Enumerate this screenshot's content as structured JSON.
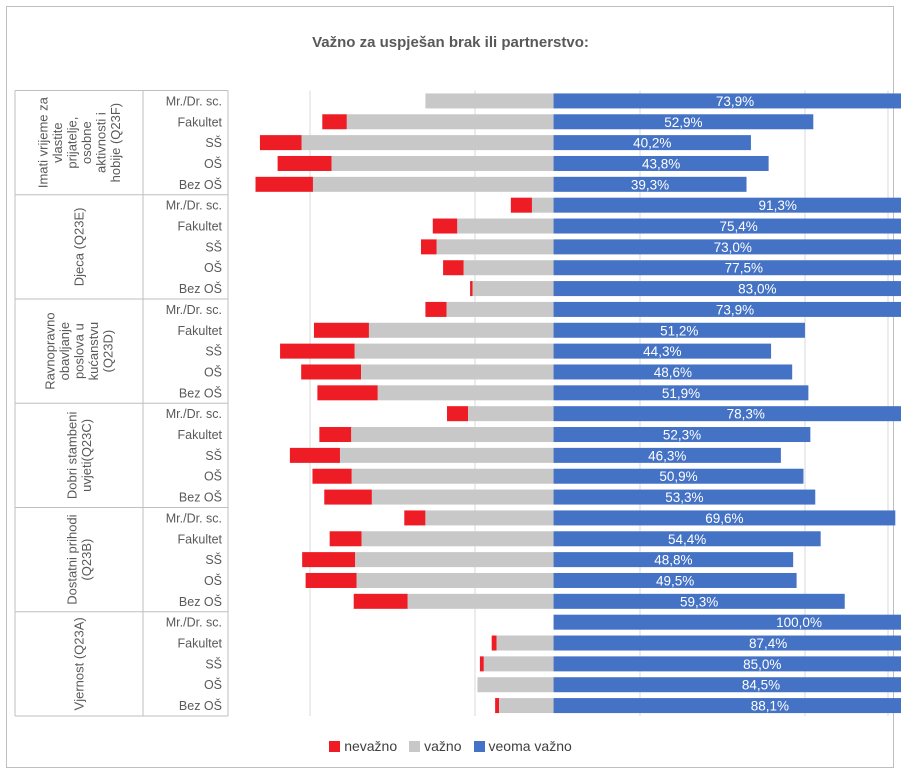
{
  "chart_data": {
    "type": "bar",
    "subtype": "stacked-horizontal",
    "title": "Važno za uspješan brak ili partnerstvo:",
    "series": [
      {
        "name": "nevažno",
        "color": "#ee1c25"
      },
      {
        "name": "važno",
        "color": "#c8c8c8"
      },
      {
        "name": "veoma važno",
        "color": "#4472c4"
      }
    ],
    "groups": [
      {
        "label": "Imati vrijeme za vlastite prijatelje, osobne aktivnosti i hobije (Q23F)",
        "label_lines": [
          "Imati vrijeme za",
          "vlastite",
          "prijatelje,",
          "osobne",
          "aktivnosti i",
          "hobije (Q23F)"
        ],
        "rows": [
          {
            "category": "Mr./Dr. sc.",
            "nevazno": 0.0,
            "vazno": 26.1,
            "veoma_vazno": 73.9,
            "label": "73,9%"
          },
          {
            "category": "Fakultet",
            "nevazno": 5.0,
            "vazno": 42.1,
            "veoma_vazno": 52.9,
            "label": "52,9%"
          },
          {
            "category": "SŠ",
            "nevazno": 8.5,
            "vazno": 51.3,
            "veoma_vazno": 40.2,
            "label": "40,2%"
          },
          {
            "category": "OŠ",
            "nevazno": 11.0,
            "vazno": 45.2,
            "veoma_vazno": 43.8,
            "label": "43,8%"
          },
          {
            "category": "Bez OŠ",
            "nevazno": 11.7,
            "vazno": 49.0,
            "veoma_vazno": 39.3,
            "label": "39,3%"
          }
        ]
      },
      {
        "label": "Djeca (Q23E)",
        "label_lines": [
          "Djeca (Q23E)"
        ],
        "rows": [
          {
            "category": "Mr./Dr. sc.",
            "nevazno": 4.3,
            "vazno": 4.4,
            "veoma_vazno": 91.3,
            "label": "91,3%"
          },
          {
            "category": "Fakultet",
            "nevazno": 5.0,
            "vazno": 19.6,
            "veoma_vazno": 75.4,
            "label": "75,4%"
          },
          {
            "category": "SŠ",
            "nevazno": 3.2,
            "vazno": 23.8,
            "veoma_vazno": 73.0,
            "label": "73,0%"
          },
          {
            "category": "OŠ",
            "nevazno": 4.2,
            "vazno": 18.3,
            "veoma_vazno": 77.5,
            "label": "77,5%"
          },
          {
            "category": "Bez OŠ",
            "nevazno": 0.5,
            "vazno": 16.5,
            "veoma_vazno": 83.0,
            "label": "83,0%"
          }
        ]
      },
      {
        "label": "Ravnopravno obavljanje poslova u kućanstvu (Q23D)",
        "label_lines": [
          "Ravnopravno",
          "obavljanje",
          "poslova u",
          "kućanstvu",
          "(Q23D)"
        ],
        "rows": [
          {
            "category": "Mr./Dr. sc.",
            "nevazno": 4.3,
            "vazno": 21.8,
            "veoma_vazno": 73.9,
            "label": "73,9%"
          },
          {
            "category": "Fakultet",
            "nevazno": 11.2,
            "vazno": 37.6,
            "veoma_vazno": 51.2,
            "label": "51,2%"
          },
          {
            "category": "SŠ",
            "nevazno": 15.2,
            "vazno": 40.5,
            "veoma_vazno": 44.3,
            "label": "44,3%"
          },
          {
            "category": "OŠ",
            "nevazno": 12.2,
            "vazno": 39.2,
            "veoma_vazno": 48.6,
            "label": "48,6%"
          },
          {
            "category": "Bez OŠ",
            "nevazno": 12.3,
            "vazno": 35.8,
            "veoma_vazno": 51.9,
            "label": "51,9%"
          }
        ]
      },
      {
        "label": "Dobri stambeni uvjeti(Q23C)",
        "label_lines": [
          "Dobri stambeni",
          "uvjeti(Q23C)"
        ],
        "rows": [
          {
            "category": "Mr./Dr. sc.",
            "nevazno": 4.3,
            "vazno": 17.4,
            "veoma_vazno": 78.3,
            "label": "78,3%"
          },
          {
            "category": "Fakultet",
            "nevazno": 6.5,
            "vazno": 41.2,
            "veoma_vazno": 52.3,
            "label": "52,3%"
          },
          {
            "category": "SŠ",
            "nevazno": 10.2,
            "vazno": 43.5,
            "veoma_vazno": 46.3,
            "label": "46,3%"
          },
          {
            "category": "OŠ",
            "nevazno": 8.0,
            "vazno": 41.1,
            "veoma_vazno": 50.9,
            "label": "50,9%"
          },
          {
            "category": "Bez OŠ",
            "nevazno": 9.7,
            "vazno": 37.0,
            "veoma_vazno": 53.3,
            "label": "53,3%"
          }
        ]
      },
      {
        "label": "Dostatni prihodi (Q23B)",
        "label_lines": [
          "Dostatni prihodi",
          "(Q23B)"
        ],
        "rows": [
          {
            "category": "Mr./Dr. sc.",
            "nevazno": 4.3,
            "vazno": 26.1,
            "veoma_vazno": 69.6,
            "label": "69,6%"
          },
          {
            "category": "Fakultet",
            "nevazno": 6.5,
            "vazno": 39.1,
            "veoma_vazno": 54.4,
            "label": "54,4%"
          },
          {
            "category": "SŠ",
            "nevazno": 10.8,
            "vazno": 40.4,
            "veoma_vazno": 48.8,
            "label": "48,8%"
          },
          {
            "category": "OŠ",
            "nevazno": 10.4,
            "vazno": 40.1,
            "veoma_vazno": 49.5,
            "label": "49,5%"
          },
          {
            "category": "Bez OŠ",
            "nevazno": 11.0,
            "vazno": 29.7,
            "veoma_vazno": 59.3,
            "label": "59,3%"
          }
        ]
      },
      {
        "label": "Vjernost (Q23A)",
        "label_lines": [
          "Vjernost (Q23A)"
        ],
        "rows": [
          {
            "category": "Mr./Dr. sc.",
            "nevazno": 0.0,
            "vazno": 0.0,
            "veoma_vazno": 100.0,
            "label": "100,0%"
          },
          {
            "category": "Fakultet",
            "nevazno": 1.0,
            "vazno": 11.6,
            "veoma_vazno": 87.4,
            "label": "87,4%"
          },
          {
            "category": "SŠ",
            "nevazno": 0.8,
            "vazno": 14.2,
            "veoma_vazno": 85.0,
            "label": "85,0%"
          },
          {
            "category": "OŠ",
            "nevazno": 0.0,
            "vazno": 15.5,
            "veoma_vazno": 84.5,
            "label": "84,5%"
          },
          {
            "category": "Bez OŠ",
            "nevazno": 0.8,
            "vazno": 11.1,
            "veoma_vazno": 88.1,
            "label": "88,1%"
          }
        ]
      }
    ],
    "grid": true,
    "legend": "bottom"
  }
}
